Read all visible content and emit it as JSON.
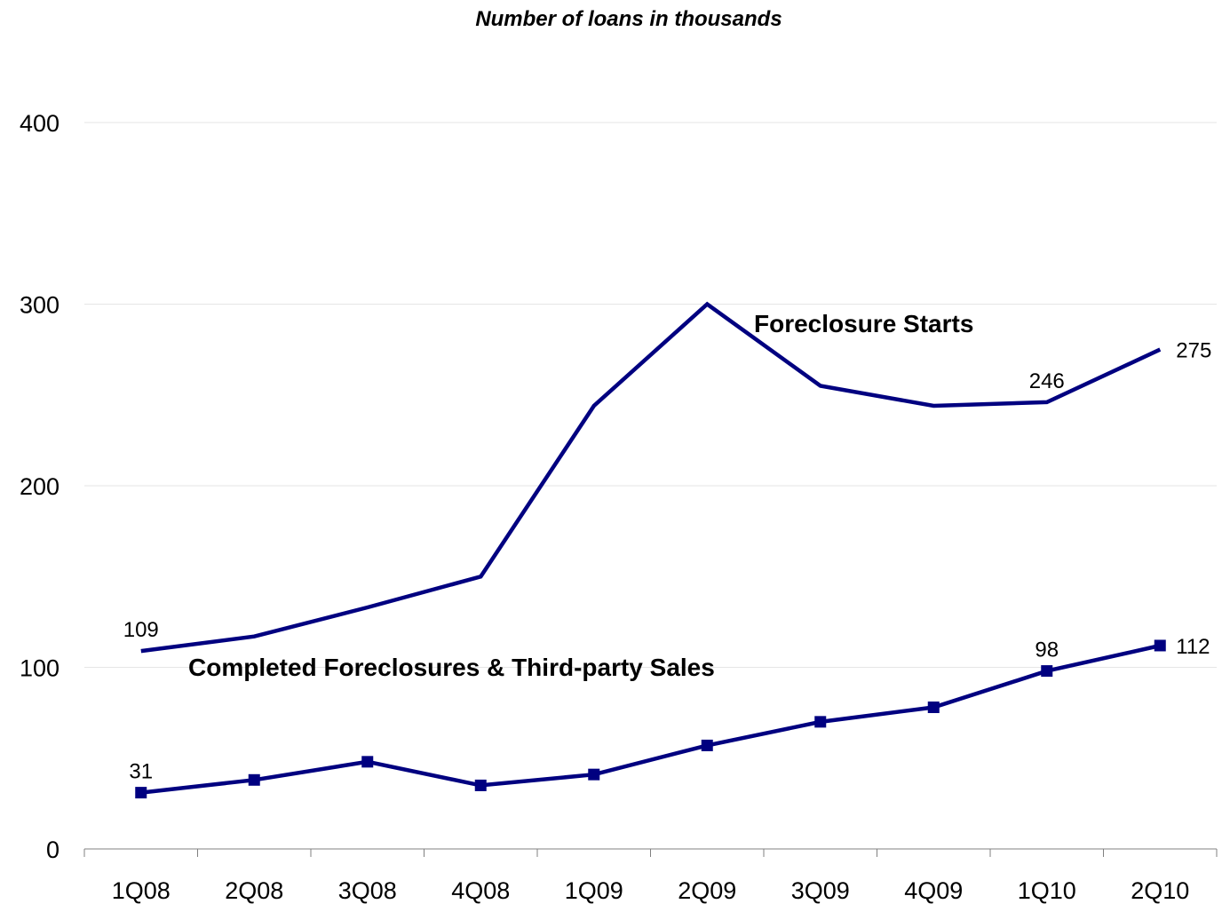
{
  "chart_data": {
    "type": "line",
    "title": "Number of loans in thousands",
    "xlabel": "",
    "ylabel": "",
    "categories": [
      "1Q08",
      "2Q08",
      "3Q08",
      "4Q08",
      "1Q09",
      "2Q09",
      "3Q09",
      "4Q09",
      "1Q10",
      "2Q10"
    ],
    "ylim": [
      0,
      400
    ],
    "yticks": [
      0,
      100,
      200,
      300,
      400
    ],
    "grid": true,
    "series": [
      {
        "name": "Foreclosure Starts",
        "values": [
          109,
          117,
          133,
          150,
          244,
          300,
          255,
          244,
          246,
          275
        ],
        "marker": "none",
        "color": "#000080",
        "labels": [
          {
            "index": 0,
            "text": "109"
          },
          {
            "index": 8,
            "text": "246"
          },
          {
            "index": 9,
            "text": "275"
          }
        ]
      },
      {
        "name": "Completed Foreclosures & Third-party Sales",
        "values": [
          31,
          38,
          48,
          35,
          41,
          57,
          70,
          78,
          98,
          112
        ],
        "marker": "square",
        "color": "#000080",
        "labels": [
          {
            "index": 0,
            "text": "31"
          },
          {
            "index": 8,
            "text": "98"
          },
          {
            "index": 9,
            "text": "112"
          }
        ]
      }
    ]
  }
}
